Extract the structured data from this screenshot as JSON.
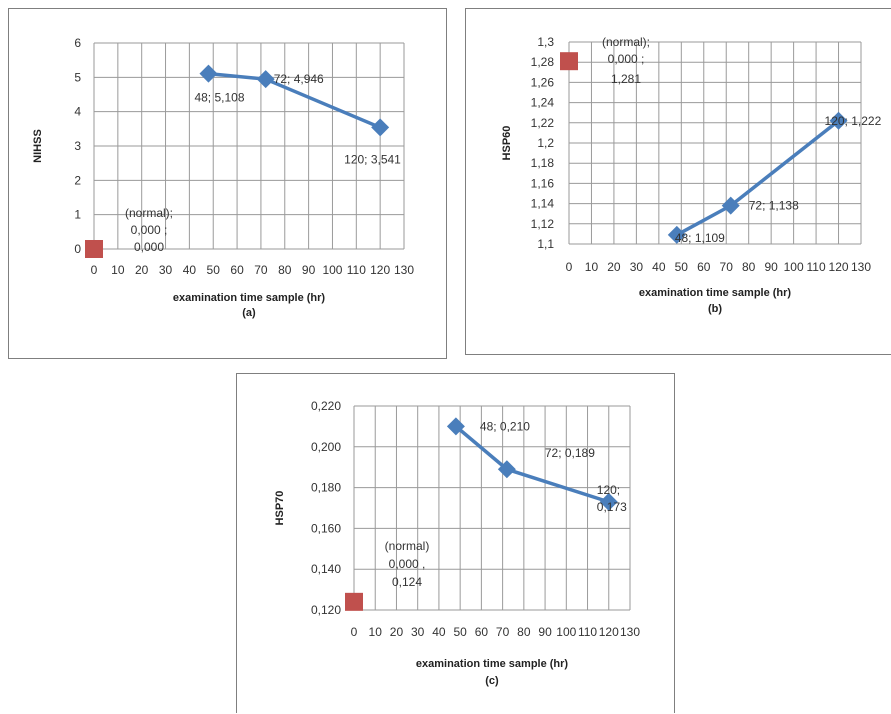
{
  "chart_data": [
    {
      "id": "a",
      "type": "line",
      "xlabel": "examination time sample (hr)",
      "caption": "(a)",
      "ylabel": "NIHSS",
      "xlim": [
        0,
        130
      ],
      "ylim": [
        0,
        6
      ],
      "xticks": [
        "0",
        "10",
        "20",
        "30",
        "40",
        "50",
        "60",
        "70",
        "80",
        "90",
        "100",
        "110",
        "120",
        "130"
      ],
      "yticks": [
        "0",
        "1",
        "2",
        "3",
        "4",
        "5",
        "6"
      ],
      "normal": {
        "x": 0,
        "y": 0,
        "label": [
          "(normal);",
          "0,000 ;",
          "0,000"
        ]
      },
      "series": [
        {
          "x": 48,
          "y": 5.108,
          "label": "48; 5,108"
        },
        {
          "x": 72,
          "y": 4.946,
          "label": "72; 4,946"
        },
        {
          "x": 120,
          "y": 3.541,
          "label": "120; 3,541"
        }
      ],
      "line_color": "#4a7ebb",
      "normal_color": "#c0504d"
    },
    {
      "id": "b",
      "type": "line",
      "xlabel": "examination time sample (hr)",
      "caption": "(b)",
      "ylabel": "HSP60",
      "xlim": [
        0,
        130
      ],
      "ylim": [
        1.1,
        1.3
      ],
      "xticks": [
        "0",
        "10",
        "20",
        "30",
        "40",
        "50",
        "60",
        "70",
        "80",
        "90",
        "100",
        "110",
        "120",
        "130"
      ],
      "yticks": [
        "1,1",
        "1,12",
        "1,14",
        "1,16",
        "1,18",
        "1,2",
        "1,22",
        "1,24",
        "1,26",
        "1,28",
        "1,3"
      ],
      "normal": {
        "x": 0,
        "y": 1.281,
        "label": [
          "(normal);",
          "0,000 ;",
          "1,281"
        ]
      },
      "series": [
        {
          "x": 48,
          "y": 1.109,
          "label": "48; 1,109"
        },
        {
          "x": 72,
          "y": 1.138,
          "label": "72; 1,138"
        },
        {
          "x": 120,
          "y": 1.222,
          "label": "120; 1,222"
        }
      ],
      "line_color": "#4a7ebb",
      "normal_color": "#c0504d"
    },
    {
      "id": "c",
      "type": "line",
      "xlabel": "examination time sample (hr)",
      "caption": "(c)",
      "ylabel": "HSP70",
      "xlim": [
        0,
        130
      ],
      "ylim": [
        0.12,
        0.22
      ],
      "xticks": [
        "0",
        "10",
        "20",
        "30",
        "40",
        "50",
        "60",
        "70",
        "80",
        "90",
        "100",
        "110",
        "120",
        "130"
      ],
      "yticks": [
        "0,120",
        "0,140",
        "0,160",
        "0,180",
        "0,200",
        "0,220"
      ],
      "normal": {
        "x": 0,
        "y": 0.124,
        "label": [
          "(normal)",
          "0,000 ,",
          "0,124"
        ]
      },
      "series": [
        {
          "x": 48,
          "y": 0.21,
          "label": "48;  0,210"
        },
        {
          "x": 72,
          "y": 0.189,
          "label": "72;  0,189"
        },
        {
          "x": 120,
          "y": 0.173,
          "label": [
            "120;",
            "0,173"
          ]
        }
      ],
      "line_color": "#4a7ebb",
      "normal_color": "#c0504d"
    }
  ]
}
